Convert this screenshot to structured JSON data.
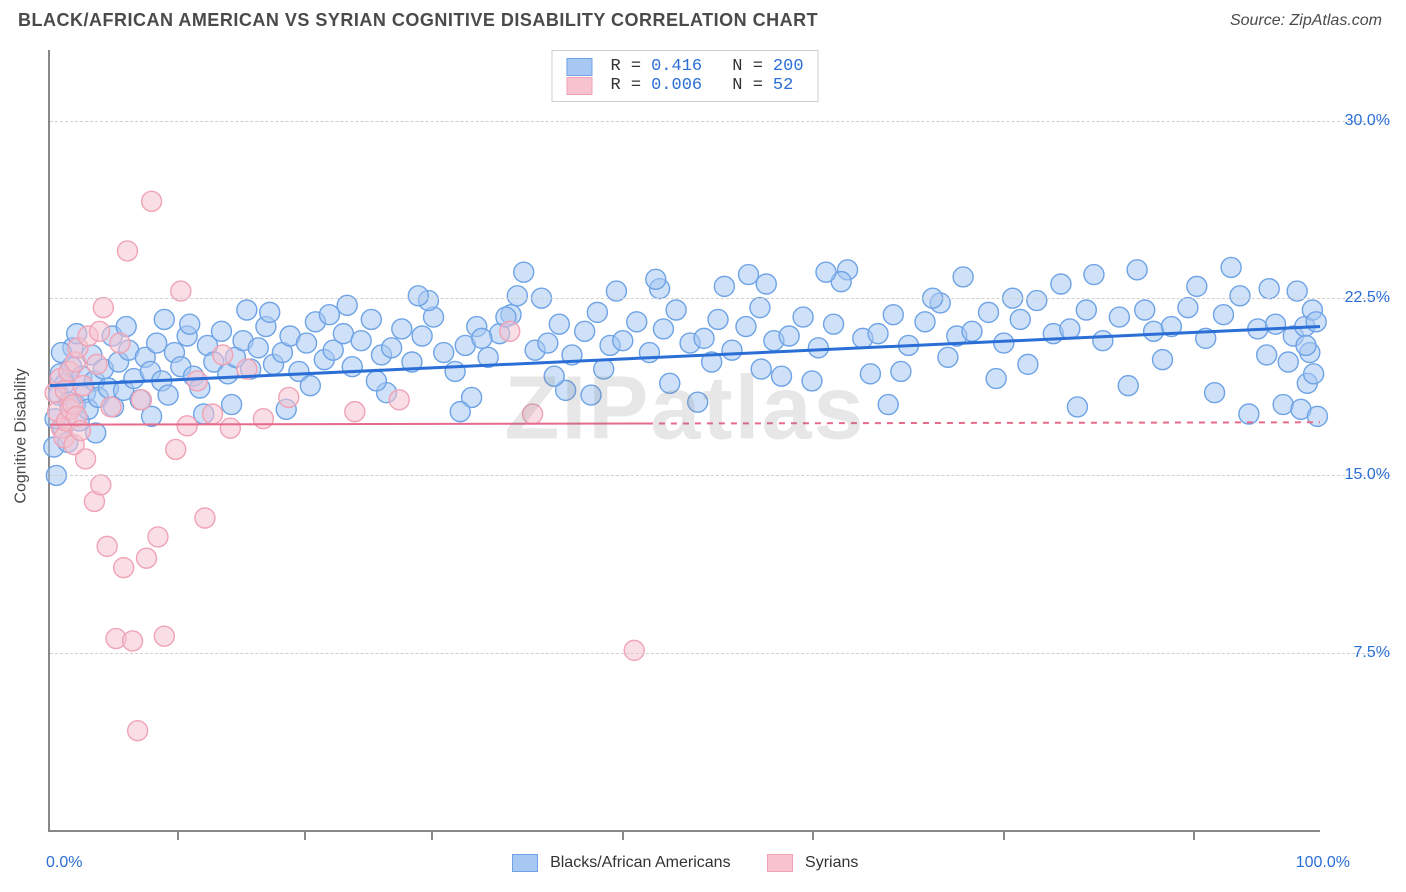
{
  "header": {
    "title": "BLACK/AFRICAN AMERICAN VS SYRIAN COGNITIVE DISABILITY CORRELATION CHART",
    "source": "Source: ZipAtlas.com"
  },
  "watermark": "ZIPatlas",
  "chart": {
    "type": "scatter",
    "ylabel": "Cognitive Disability",
    "xlim": [
      0,
      100
    ],
    "ylim": [
      0,
      33
    ],
    "ytick_values": [
      7.5,
      15.0,
      22.5,
      30.0
    ],
    "ytick_labels": [
      "7.5%",
      "15.0%",
      "22.5%",
      "30.0%"
    ],
    "xlim_labels": [
      "0.0%",
      "100.0%"
    ],
    "xtick_positions": [
      10,
      20,
      30,
      45,
      60,
      75,
      90
    ],
    "background_color": "#ffffff",
    "grid_color": "#cfcfcf",
    "axis_color": "#888888",
    "label_color": "#2a6ed6",
    "text_color": "#4a4a4a",
    "title_fontsize": 18,
    "label_fontsize": 16,
    "marker_radius": 10,
    "marker_opacity": 0.55,
    "line_width": 3
  },
  "series": [
    {
      "id": "blacks",
      "name": "Blacks/African Americans",
      "fill": "#a7c8f2",
      "stroke": "#6ea3e6",
      "line_color": "#2a6ed6",
      "R": "0.416",
      "N": "200",
      "trend": {
        "x1": 0,
        "y1": 18.8,
        "x2": 100,
        "y2": 21.3
      },
      "trend_dash_after_x": null,
      "points": [
        [
          0.3,
          16.2
        ],
        [
          0.5,
          15.0
        ],
        [
          0.7,
          18.4
        ],
        [
          0.8,
          19.3
        ],
        [
          1.0,
          17.0
        ],
        [
          1.2,
          18.9
        ],
        [
          1.4,
          16.4
        ],
        [
          1.5,
          18.1
        ],
        [
          1.7,
          19.6
        ],
        [
          2.0,
          18.0
        ],
        [
          2.3,
          17.3
        ],
        [
          2.5,
          19.2
        ],
        [
          2.8,
          18.5
        ],
        [
          3.0,
          17.8
        ],
        [
          3.3,
          20.1
        ],
        [
          3.5,
          19.0
        ],
        [
          3.8,
          18.3
        ],
        [
          4.2,
          19.5
        ],
        [
          4.6,
          18.7
        ],
        [
          5.0,
          17.9
        ],
        [
          5.4,
          19.8
        ],
        [
          5.8,
          18.6
        ],
        [
          6.2,
          20.3
        ],
        [
          6.6,
          19.1
        ],
        [
          7.1,
          18.2
        ],
        [
          7.5,
          20.0
        ],
        [
          7.9,
          19.4
        ],
        [
          8.4,
          20.6
        ],
        [
          8.8,
          19.0
        ],
        [
          9.3,
          18.4
        ],
        [
          9.8,
          20.2
        ],
        [
          10.3,
          19.6
        ],
        [
          10.8,
          20.9
        ],
        [
          11.3,
          19.2
        ],
        [
          11.8,
          18.7
        ],
        [
          12.4,
          20.5
        ],
        [
          12.9,
          19.8
        ],
        [
          13.5,
          21.1
        ],
        [
          14.0,
          19.3
        ],
        [
          14.6,
          20.0
        ],
        [
          15.2,
          20.7
        ],
        [
          15.8,
          19.5
        ],
        [
          16.4,
          20.4
        ],
        [
          17.0,
          21.3
        ],
        [
          17.6,
          19.7
        ],
        [
          18.3,
          20.2
        ],
        [
          18.9,
          20.9
        ],
        [
          19.6,
          19.4
        ],
        [
          20.2,
          20.6
        ],
        [
          20.9,
          21.5
        ],
        [
          21.6,
          19.9
        ],
        [
          22.3,
          20.3
        ],
        [
          23.1,
          21.0
        ],
        [
          23.8,
          19.6
        ],
        [
          24.5,
          20.7
        ],
        [
          25.3,
          21.6
        ],
        [
          26.1,
          20.1
        ],
        [
          26.9,
          20.4
        ],
        [
          27.7,
          21.2
        ],
        [
          28.5,
          19.8
        ],
        [
          29.3,
          20.9
        ],
        [
          30.2,
          21.7
        ],
        [
          31.0,
          20.2
        ],
        [
          31.9,
          19.4
        ],
        [
          32.7,
          20.5
        ],
        [
          33.6,
          21.3
        ],
        [
          34.5,
          20.0
        ],
        [
          35.4,
          21.0
        ],
        [
          36.3,
          21.8
        ],
        [
          37.3,
          23.6
        ],
        [
          38.2,
          20.3
        ],
        [
          39.2,
          20.6
        ],
        [
          40.1,
          21.4
        ],
        [
          41.1,
          20.1
        ],
        [
          42.1,
          21.1
        ],
        [
          43.1,
          21.9
        ],
        [
          44.1,
          20.5
        ],
        [
          45.1,
          20.7
        ],
        [
          46.2,
          21.5
        ],
        [
          47.2,
          20.2
        ],
        [
          48.3,
          21.2
        ],
        [
          49.3,
          22.0
        ],
        [
          50.4,
          20.6
        ],
        [
          51.5,
          20.8
        ],
        [
          52.6,
          21.6
        ],
        [
          53.7,
          20.3
        ],
        [
          54.8,
          21.3
        ],
        [
          55.9,
          22.1
        ],
        [
          57.0,
          20.7
        ],
        [
          58.2,
          20.9
        ],
        [
          59.3,
          21.7
        ],
        [
          60.5,
          20.4
        ],
        [
          61.7,
          21.4
        ],
        [
          62.8,
          23.7
        ],
        [
          64.0,
          20.8
        ],
        [
          65.2,
          21.0
        ],
        [
          66.4,
          21.8
        ],
        [
          67.6,
          20.5
        ],
        [
          68.9,
          21.5
        ],
        [
          70.1,
          22.3
        ],
        [
          71.4,
          20.9
        ],
        [
          72.6,
          21.1
        ],
        [
          73.9,
          21.9
        ],
        [
          75.1,
          20.6
        ],
        [
          76.4,
          21.6
        ],
        [
          77.7,
          22.4
        ],
        [
          79.0,
          21.0
        ],
        [
          80.3,
          21.2
        ],
        [
          81.6,
          22.0
        ],
        [
          82.9,
          20.7
        ],
        [
          84.2,
          21.7
        ],
        [
          85.6,
          23.7
        ],
        [
          86.9,
          21.1
        ],
        [
          88.3,
          21.3
        ],
        [
          89.6,
          22.1
        ],
        [
          91.0,
          20.8
        ],
        [
          92.4,
          21.8
        ],
        [
          93.7,
          22.6
        ],
        [
          95.1,
          21.2
        ],
        [
          96.5,
          21.4
        ],
        [
          97.1,
          18.0
        ],
        [
          97.9,
          20.9
        ],
        [
          98.2,
          22.8
        ],
        [
          98.5,
          17.8
        ],
        [
          98.8,
          21.3
        ],
        [
          99.0,
          18.9
        ],
        [
          99.2,
          20.2
        ],
        [
          99.4,
          22.0
        ],
        [
          99.5,
          19.3
        ],
        [
          99.7,
          21.5
        ],
        [
          1.8,
          20.4
        ],
        [
          4.9,
          20.9
        ],
        [
          8.0,
          17.5
        ],
        [
          11.0,
          21.4
        ],
        [
          14.3,
          18.0
        ],
        [
          17.3,
          21.9
        ],
        [
          20.5,
          18.8
        ],
        [
          23.4,
          22.2
        ],
        [
          26.5,
          18.5
        ],
        [
          29.8,
          22.4
        ],
        [
          33.2,
          18.3
        ],
        [
          36.8,
          22.6
        ],
        [
          40.6,
          18.6
        ],
        [
          44.6,
          22.8
        ],
        [
          48.8,
          18.9
        ],
        [
          53.1,
          23.0
        ],
        [
          57.6,
          19.2
        ],
        [
          62.3,
          23.2
        ],
        [
          67.0,
          19.4
        ],
        [
          71.9,
          23.4
        ],
        [
          77.0,
          19.7
        ],
        [
          82.2,
          23.5
        ],
        [
          87.6,
          19.9
        ],
        [
          93.0,
          23.8
        ],
        [
          34.0,
          20.8
        ],
        [
          38.7,
          22.5
        ],
        [
          43.6,
          19.5
        ],
        [
          48.0,
          22.9
        ],
        [
          52.1,
          19.8
        ],
        [
          56.4,
          23.1
        ],
        [
          60.0,
          19.0
        ],
        [
          64.6,
          19.3
        ],
        [
          69.5,
          22.5
        ],
        [
          74.5,
          19.1
        ],
        [
          79.6,
          23.1
        ],
        [
          84.9,
          18.8
        ],
        [
          90.3,
          23.0
        ],
        [
          95.8,
          20.1
        ],
        [
          55.0,
          23.5
        ],
        [
          42.6,
          18.4
        ],
        [
          47.7,
          23.3
        ],
        [
          51.0,
          18.1
        ],
        [
          56.0,
          19.5
        ],
        [
          61.1,
          23.6
        ],
        [
          66.0,
          18.0
        ],
        [
          70.7,
          20.0
        ],
        [
          75.8,
          22.5
        ],
        [
          80.9,
          17.9
        ],
        [
          86.2,
          22.0
        ],
        [
          91.7,
          18.5
        ],
        [
          9.0,
          21.6
        ],
        [
          12.1,
          17.6
        ],
        [
          15.5,
          22.0
        ],
        [
          18.6,
          17.8
        ],
        [
          22.0,
          21.8
        ],
        [
          25.7,
          19.0
        ],
        [
          29.0,
          22.6
        ],
        [
          32.3,
          17.7
        ],
        [
          35.9,
          21.7
        ],
        [
          39.7,
          19.2
        ],
        [
          94.4,
          17.6
        ],
        [
          96.0,
          22.9
        ],
        [
          97.5,
          19.8
        ],
        [
          98.9,
          20.5
        ],
        [
          99.8,
          17.5
        ],
        [
          6.0,
          21.3
        ],
        [
          3.6,
          16.8
        ],
        [
          2.1,
          21.0
        ],
        [
          0.9,
          20.2
        ],
        [
          0.4,
          17.4
        ]
      ]
    },
    {
      "id": "syrians",
      "name": "Syrians",
      "fill": "#f6c3cf",
      "stroke": "#efa3b5",
      "line_color": "#e66a8a",
      "R": "0.006",
      "N": "52",
      "trend": {
        "x1": 0,
        "y1": 17.15,
        "x2": 100,
        "y2": 17.25
      },
      "trend_dash_after_x": 47,
      "points": [
        [
          0.4,
          18.5
        ],
        [
          0.6,
          17.7
        ],
        [
          0.8,
          19.1
        ],
        [
          0.9,
          17.0
        ],
        [
          1.1,
          16.6
        ],
        [
          1.2,
          18.6
        ],
        [
          1.3,
          17.3
        ],
        [
          1.5,
          19.4
        ],
        [
          1.6,
          17.8
        ],
        [
          1.8,
          18.0
        ],
        [
          1.9,
          16.3
        ],
        [
          2.0,
          19.8
        ],
        [
          2.1,
          17.5
        ],
        [
          2.2,
          20.4
        ],
        [
          2.4,
          16.9
        ],
        [
          2.6,
          18.8
        ],
        [
          2.8,
          15.7
        ],
        [
          3.0,
          20.9
        ],
        [
          3.9,
          21.1
        ],
        [
          3.5,
          13.9
        ],
        [
          3.7,
          19.7
        ],
        [
          4.0,
          14.6
        ],
        [
          4.2,
          22.1
        ],
        [
          4.5,
          12.0
        ],
        [
          4.8,
          17.9
        ],
        [
          5.2,
          8.1
        ],
        [
          5.5,
          20.6
        ],
        [
          5.8,
          11.1
        ],
        [
          6.1,
          24.5
        ],
        [
          6.5,
          8.0
        ],
        [
          6.9,
          4.2
        ],
        [
          7.2,
          18.2
        ],
        [
          7.6,
          11.5
        ],
        [
          8.0,
          26.6
        ],
        [
          8.5,
          12.4
        ],
        [
          9.0,
          8.2
        ],
        [
          9.9,
          16.1
        ],
        [
          10.3,
          22.8
        ],
        [
          10.8,
          17.1
        ],
        [
          11.6,
          19.0
        ],
        [
          12.2,
          13.2
        ],
        [
          12.8,
          17.6
        ],
        [
          13.6,
          20.1
        ],
        [
          14.2,
          17.0
        ],
        [
          15.5,
          19.5
        ],
        [
          16.8,
          17.4
        ],
        [
          18.8,
          18.3
        ],
        [
          24.0,
          17.7
        ],
        [
          27.5,
          18.2
        ],
        [
          36.2,
          21.1
        ],
        [
          38.0,
          17.6
        ],
        [
          46.0,
          7.6
        ]
      ]
    }
  ],
  "top_legend": {
    "rows": [
      {
        "swatch_fill": "#a7c8f2",
        "swatch_stroke": "#6ea3e6",
        "text_R": "R =",
        "val_R": "0.416",
        "text_N": "N =",
        "val_N": "200"
      },
      {
        "swatch_fill": "#f6c3cf",
        "swatch_stroke": "#efa3b5",
        "text_R": "R =",
        "val_R": "0.006",
        "text_N": "N =",
        "val_N": " 52"
      }
    ]
  },
  "bottom_legend": {
    "items": [
      {
        "swatch_fill": "#a7c8f2",
        "swatch_stroke": "#6ea3e6",
        "label": "Blacks/African Americans"
      },
      {
        "swatch_fill": "#f6c3cf",
        "swatch_stroke": "#efa3b5",
        "label": "Syrians"
      }
    ]
  }
}
